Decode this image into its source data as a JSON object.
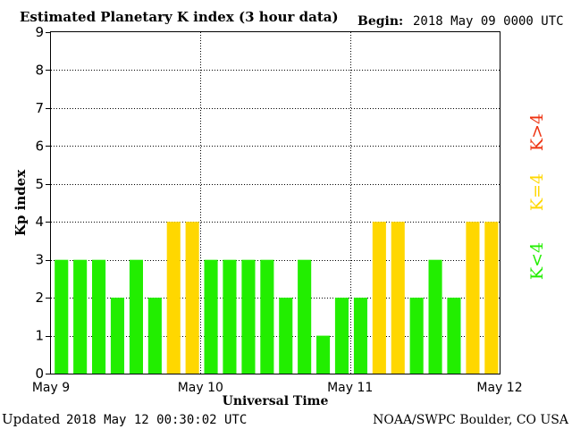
{
  "header": {
    "title": "Estimated Planetary K index (3 hour data)",
    "begin_label": "Begin:",
    "begin_value": "2018 May 09 0000 UTC"
  },
  "footer": {
    "updated_label": "Updated",
    "updated_value": "2018 May 12 00:30:02 UTC",
    "source": "NOAA/SWPC Boulder, CO USA"
  },
  "legend": {
    "high": "K>4",
    "equal": "K=4",
    "low": "K<4"
  },
  "colors": {
    "low": "#22ee00",
    "equal": "#ffd700",
    "high": "#ee3311",
    "frame": "#000000",
    "grid": "#000000"
  },
  "chart_data": {
    "type": "bar",
    "title": "Estimated Planetary K index (3 hour data)",
    "xlabel": "Universal Time",
    "ylabel": "Kp index",
    "ylim": [
      0,
      9
    ],
    "yticks": [
      "0",
      "1",
      "2",
      "3",
      "4",
      "5",
      "6",
      "7",
      "8",
      "9"
    ],
    "xticks": [
      "May 9",
      "May 10",
      "May 11",
      "May 12"
    ],
    "grid": true,
    "bins_per_day": 8,
    "values": [
      3,
      3,
      3,
      2,
      3,
      2,
      4,
      4,
      3,
      3,
      3,
      3,
      2,
      3,
      1,
      2,
      2,
      4,
      4,
      2,
      3,
      2,
      4,
      4
    ]
  }
}
